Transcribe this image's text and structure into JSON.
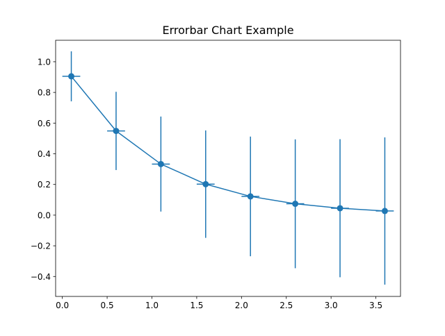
{
  "chart_data": {
    "type": "line",
    "title": "Errorbar Chart Example",
    "xlabel": "",
    "ylabel": "",
    "xlim": [
      -0.075,
      3.775
    ],
    "ylim": [
      -0.53,
      1.14
    ],
    "xticks": [
      0.0,
      0.5,
      1.0,
      1.5,
      2.0,
      2.5,
      3.0,
      3.5
    ],
    "xtick_labels": [
      "0.0",
      "0.5",
      "1.0",
      "1.5",
      "2.0",
      "2.5",
      "3.0",
      "3.5"
    ],
    "yticks": [
      -0.4,
      -0.2,
      0.0,
      0.2,
      0.4,
      0.6,
      0.8,
      1.0
    ],
    "ytick_labels": [
      "−0.4",
      "−0.2",
      "0.0",
      "0.2",
      "0.4",
      "0.6",
      "0.8",
      "1.0"
    ],
    "grid": false,
    "legend": "none",
    "series": [
      {
        "color": "#1f77b4",
        "marker": "circle",
        "x": [
          0.1,
          0.6,
          1.1,
          1.6,
          2.1,
          2.6,
          3.1,
          3.6
        ],
        "y": [
          0.905,
          0.549,
          0.333,
          0.202,
          0.122,
          0.074,
          0.045,
          0.027
        ],
        "yerr": [
          0.163,
          0.255,
          0.31,
          0.35,
          0.39,
          0.42,
          0.45,
          0.48
        ],
        "xerr": [
          0.1,
          0.1,
          0.1,
          0.1,
          0.1,
          0.1,
          0.1,
          0.1
        ]
      }
    ]
  }
}
